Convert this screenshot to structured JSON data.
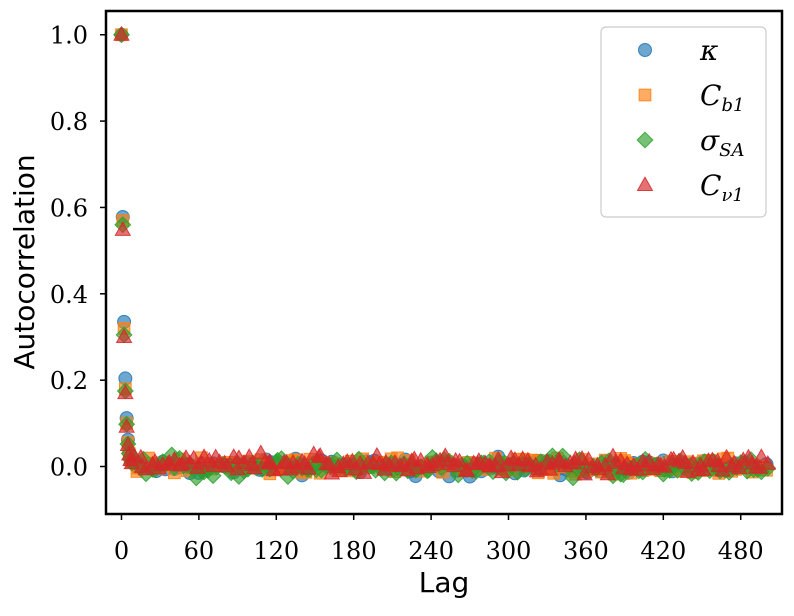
{
  "chart_data": {
    "type": "scatter",
    "title": "",
    "xlabel": "Lag",
    "ylabel": "Autocorrelation",
    "xlim": [
      -12,
      512
    ],
    "ylim": [
      -0.11,
      1.055
    ],
    "xticks": [
      0,
      60,
      120,
      180,
      240,
      300,
      360,
      420,
      480
    ],
    "xtick_labels": [
      "0",
      "60",
      "120",
      "180",
      "240",
      "300",
      "360",
      "420",
      "480"
    ],
    "yticks": [
      0.0,
      0.2,
      0.4,
      0.6,
      0.8,
      1.0
    ],
    "ytick_labels": [
      "0.0",
      "0.2",
      "0.4",
      "0.6",
      "0.8",
      "1.0"
    ],
    "grid": false,
    "legend_position": "top-right",
    "series": [
      {
        "name": "κ",
        "label_main": "κ",
        "label_sub": "",
        "marker": "circle",
        "color": "#1f77b4",
        "head": [
          [
            0,
            1.0
          ],
          [
            1,
            0.578
          ],
          [
            2,
            0.335
          ],
          [
            3,
            0.204
          ],
          [
            4,
            0.112
          ],
          [
            5,
            0.062
          ],
          [
            6,
            0.033
          ],
          [
            7,
            0.018
          ],
          [
            8,
            0.01
          ]
        ],
        "tail_lag_range": [
          10,
          500
        ],
        "tail_step": 3,
        "tail_mean": 0.0,
        "tail_spread": 0.025
      },
      {
        "name": "C_b1",
        "label_main": "C",
        "label_sub": "b1",
        "marker": "square",
        "color": "#ff7f0e",
        "head": [
          [
            0,
            1.0
          ],
          [
            1,
            0.57
          ],
          [
            2,
            0.32
          ],
          [
            3,
            0.18
          ],
          [
            4,
            0.1
          ],
          [
            5,
            0.055
          ],
          [
            6,
            0.03
          ],
          [
            7,
            0.016
          ],
          [
            8,
            0.01
          ]
        ],
        "tail_lag_range": [
          10,
          500
        ],
        "tail_step": 3,
        "tail_mean": 0.0,
        "tail_spread": 0.03
      },
      {
        "name": "σ_SA",
        "label_main": "σ",
        "label_sub": "SA",
        "marker": "diamond",
        "color": "#2ca02c",
        "head": [
          [
            0,
            1.0
          ],
          [
            1,
            0.56
          ],
          [
            2,
            0.305
          ],
          [
            3,
            0.175
          ],
          [
            4,
            0.098
          ],
          [
            5,
            0.052
          ],
          [
            6,
            0.03
          ],
          [
            7,
            0.016
          ],
          [
            8,
            0.008
          ]
        ],
        "tail_lag_range": [
          10,
          500
        ],
        "tail_step": 3,
        "tail_mean": 0.0,
        "tail_spread": 0.032
      },
      {
        "name": "C_ν1",
        "label_main": "C",
        "label_sub": "ν1",
        "marker": "triangle",
        "color": "#d62728",
        "head": [
          [
            0,
            1.0
          ],
          [
            1,
            0.548
          ],
          [
            2,
            0.3
          ],
          [
            3,
            0.17
          ],
          [
            4,
            0.092
          ],
          [
            5,
            0.05
          ],
          [
            6,
            0.028
          ],
          [
            7,
            0.015
          ],
          [
            8,
            0.008
          ]
        ],
        "tail_lag_range": [
          10,
          500
        ],
        "tail_step": 3,
        "tail_mean": 0.005,
        "tail_spread": 0.03
      }
    ]
  }
}
